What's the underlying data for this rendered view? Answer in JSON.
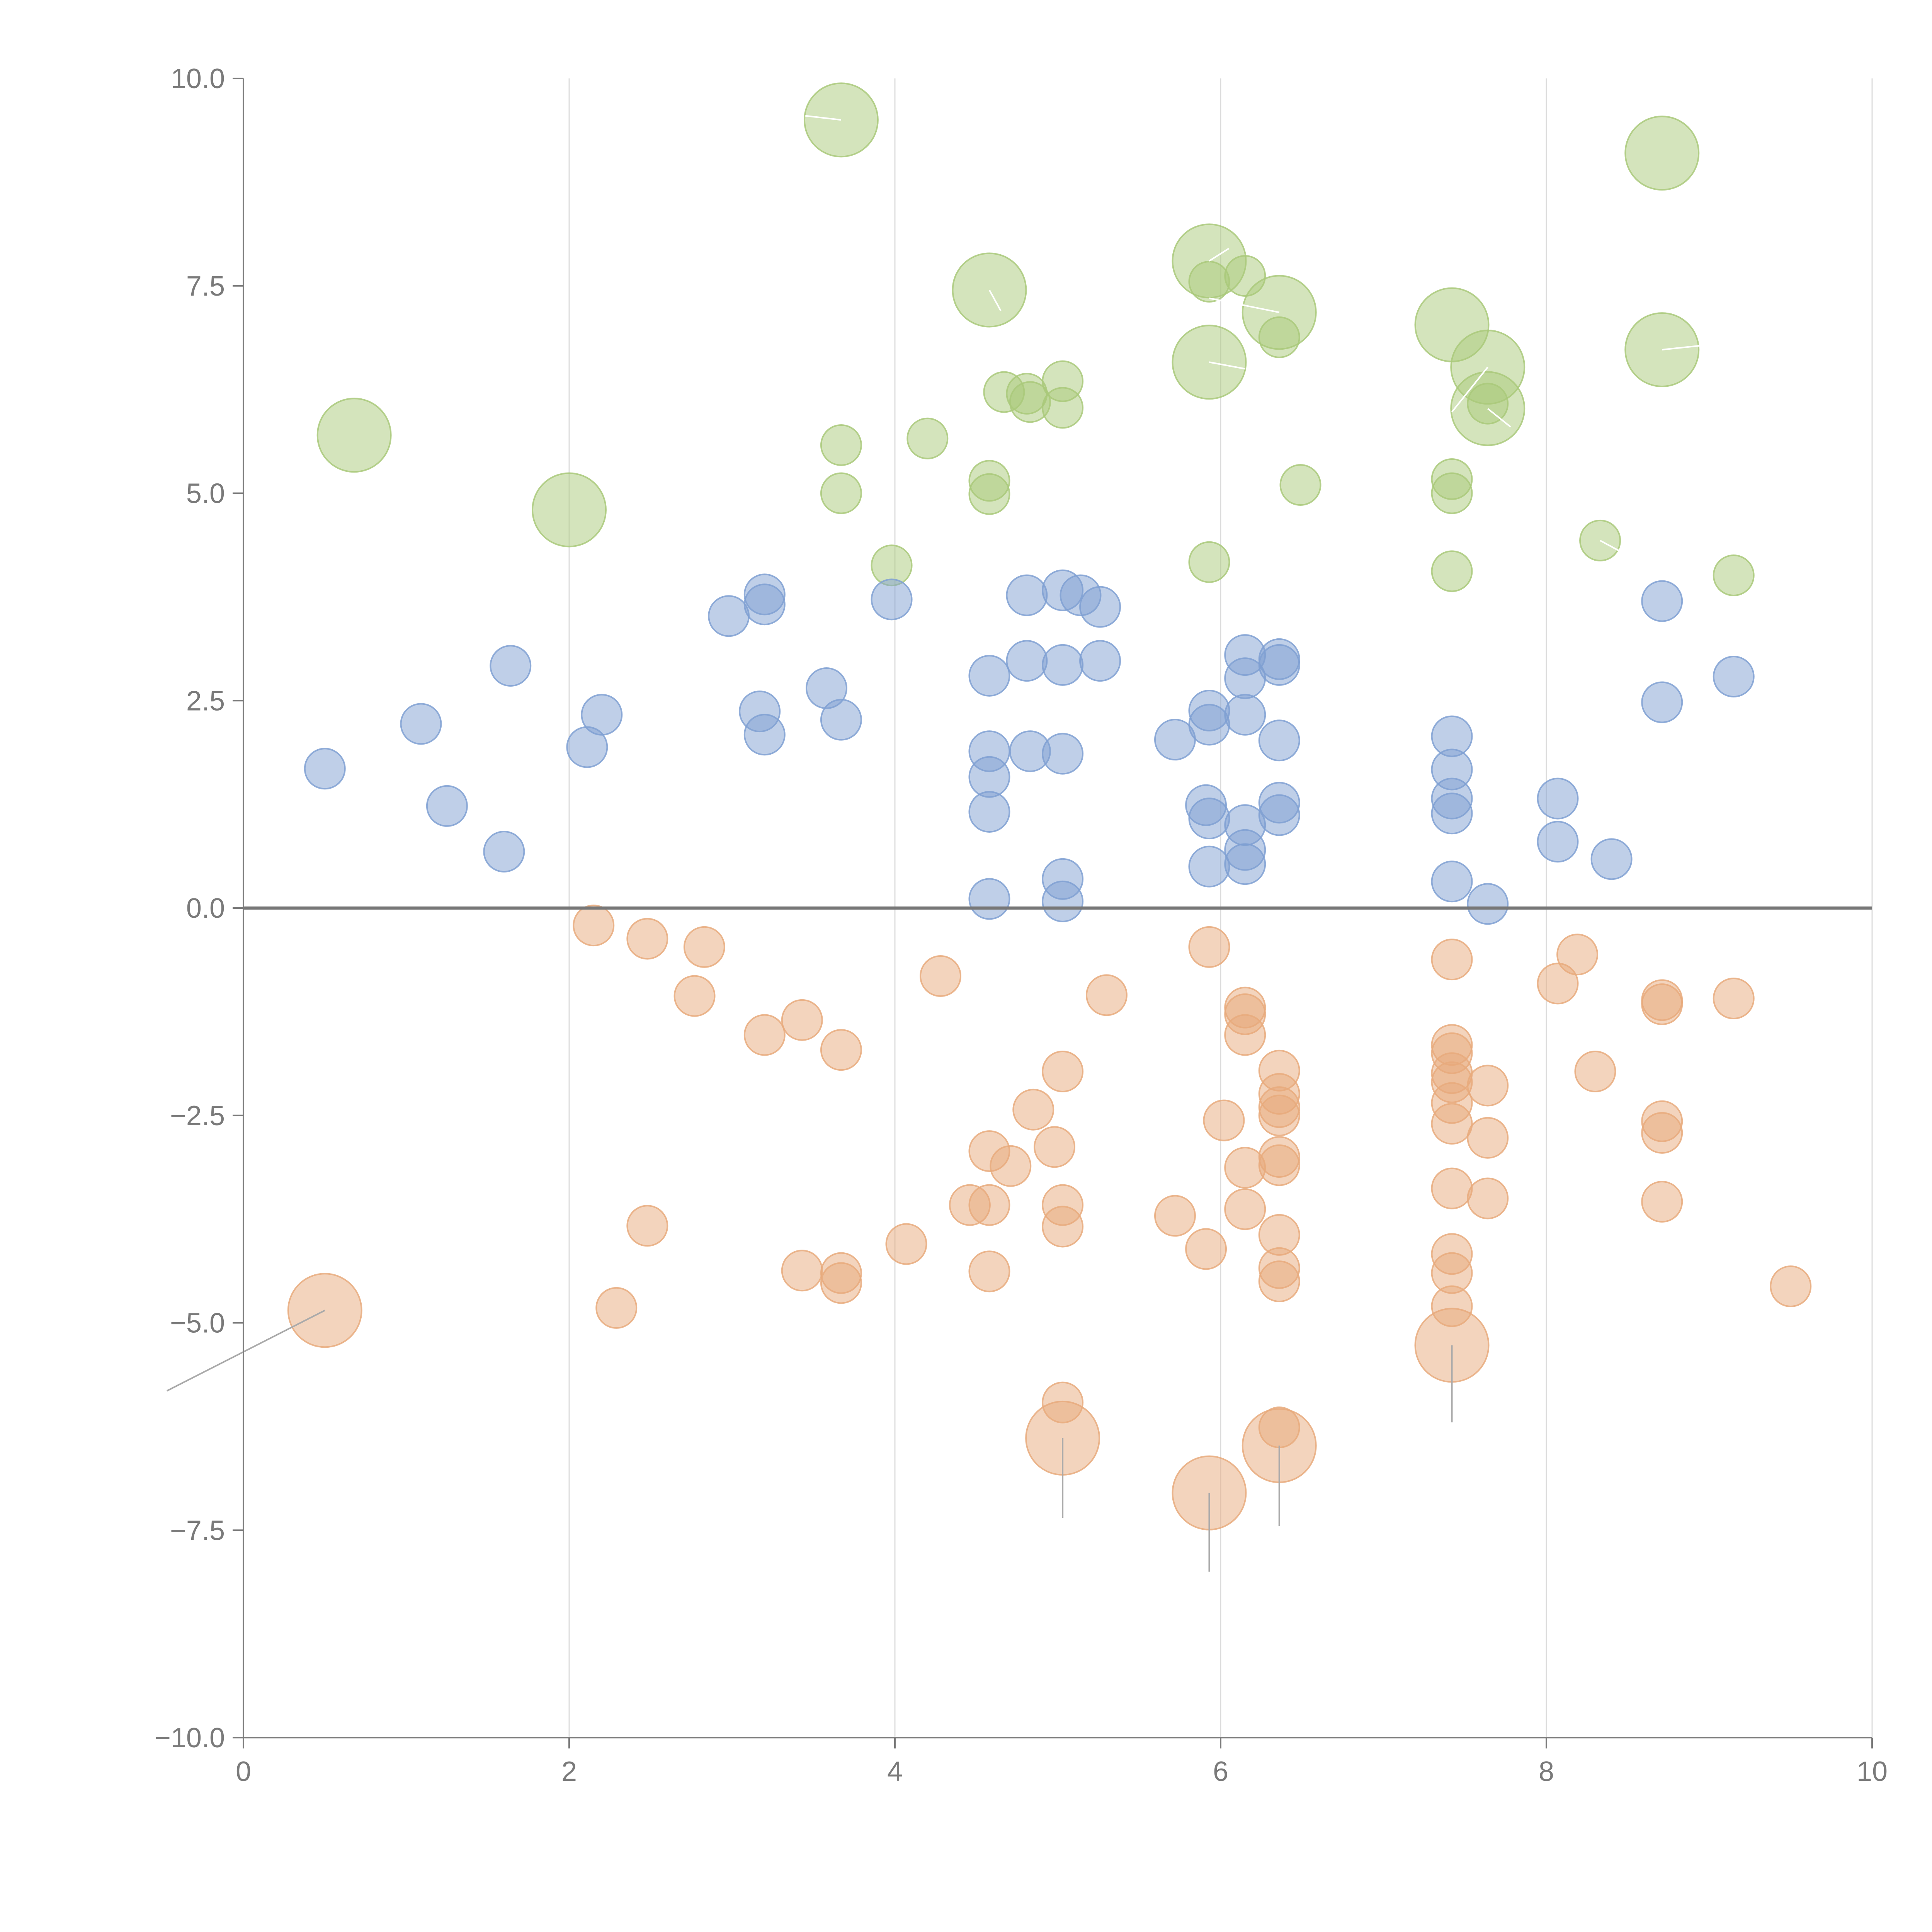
{
  "chart_data": {
    "type": "scatter",
    "title": "",
    "xlabel": "",
    "ylabel": "",
    "xlim": [
      0,
      10
    ],
    "ylim": [
      -10,
      10
    ],
    "x_ticks": [
      0,
      2,
      4,
      6,
      8,
      10
    ],
    "x_tick_labels": [
      "0",
      "2",
      "4",
      "6",
      "8",
      "10"
    ],
    "y_ticks": [
      10,
      7.5,
      5,
      2.5,
      0,
      -2.5,
      -5,
      -7.5,
      -10
    ],
    "y_tick_labels": [
      "10.0",
      "7.5",
      "5.0",
      "2.5",
      "0.0",
      "−2.5",
      "−5.0",
      "−7.5",
      "−10.0"
    ],
    "grid": {
      "vertical": true,
      "horizontal": false
    },
    "zero_line": true,
    "legend": "none",
    "series": [
      {
        "color": "#a9c97a",
        "points": [
          [
            3.67,
            9.5,
            1
          ],
          [
            8.71,
            9.1,
            1
          ],
          [
            5.93,
            7.8,
            1
          ],
          [
            4.58,
            7.45,
            1
          ],
          [
            6.36,
            7.18,
            1
          ],
          [
            7.42,
            7.03,
            1
          ],
          [
            8.71,
            6.73,
            1
          ],
          [
            5.93,
            6.58,
            1
          ],
          [
            7.64,
            6.52,
            1
          ],
          [
            7.64,
            6.02,
            1
          ],
          [
            0.68,
            5.7,
            1
          ],
          [
            2.0,
            4.8,
            1
          ],
          [
            5.93,
            7.55,
            0
          ],
          [
            6.15,
            7.62,
            0
          ],
          [
            6.36,
            6.88,
            0
          ],
          [
            4.67,
            6.22,
            0
          ],
          [
            4.81,
            6.2,
            0
          ],
          [
            4.83,
            6.1,
            0
          ],
          [
            5.03,
            6.35,
            0
          ],
          [
            5.03,
            6.03,
            0
          ],
          [
            3.67,
            5.58,
            0
          ],
          [
            4.2,
            5.66,
            0
          ],
          [
            4.58,
            5.15,
            0
          ],
          [
            4.58,
            4.99,
            0
          ],
          [
            3.67,
            5.0,
            0
          ],
          [
            6.49,
            5.1,
            0
          ],
          [
            7.42,
            5.17,
            0
          ],
          [
            7.42,
            5.0,
            0
          ],
          [
            7.42,
            4.06,
            0
          ],
          [
            7.64,
            6.08,
            0
          ],
          [
            3.98,
            4.13,
            0
          ],
          [
            5.93,
            4.17,
            0
          ],
          [
            8.33,
            4.43,
            0
          ],
          [
            9.15,
            4.01,
            0
          ]
        ]
      },
      {
        "color": "#7fa0d2",
        "points": [
          [
            0.5,
            1.68,
            0
          ],
          [
            1.09,
            2.22,
            0
          ],
          [
            1.25,
            1.23,
            0
          ],
          [
            1.6,
            0.68,
            0
          ],
          [
            1.64,
            2.92,
            0
          ],
          [
            2.11,
            1.94,
            0
          ],
          [
            2.2,
            2.33,
            0
          ],
          [
            2.98,
            3.52,
            0
          ],
          [
            3.17,
            2.37,
            0
          ],
          [
            3.2,
            2.09,
            0
          ],
          [
            3.2,
            3.78,
            0
          ],
          [
            3.2,
            3.66,
            0
          ],
          [
            3.58,
            2.65,
            0
          ],
          [
            3.67,
            2.27,
            0
          ],
          [
            3.98,
            3.72,
            0
          ],
          [
            4.58,
            2.8,
            0
          ],
          [
            4.58,
            1.89,
            0
          ],
          [
            4.58,
            1.58,
            0
          ],
          [
            4.58,
            1.16,
            0
          ],
          [
            4.58,
            0.11,
            0
          ],
          [
            4.81,
            3.77,
            0
          ],
          [
            4.81,
            2.98,
            0
          ],
          [
            4.83,
            1.89,
            0
          ],
          [
            5.03,
            3.83,
            0
          ],
          [
            5.03,
            2.93,
            0
          ],
          [
            5.03,
            1.86,
            0
          ],
          [
            5.03,
            0.35,
            0
          ],
          [
            5.03,
            0.08,
            0
          ],
          [
            5.14,
            3.77,
            0
          ],
          [
            5.26,
            3.63,
            0
          ],
          [
            5.26,
            2.98,
            0
          ],
          [
            5.72,
            2.03,
            0
          ],
          [
            5.91,
            1.24,
            0
          ],
          [
            5.93,
            2.38,
            0
          ],
          [
            5.93,
            2.21,
            0
          ],
          [
            5.93,
            1.08,
            0
          ],
          [
            5.93,
            0.5,
            0
          ],
          [
            6.15,
            3.05,
            0
          ],
          [
            6.15,
            2.77,
            0
          ],
          [
            6.15,
            2.33,
            0
          ],
          [
            6.15,
            1.0,
            0
          ],
          [
            6.15,
            0.7,
            0
          ],
          [
            6.15,
            0.53,
            0
          ],
          [
            6.36,
            3.0,
            0
          ],
          [
            6.36,
            2.93,
            0
          ],
          [
            6.36,
            2.02,
            0
          ],
          [
            6.36,
            1.27,
            0
          ],
          [
            6.36,
            1.12,
            0
          ],
          [
            7.42,
            2.07,
            0
          ],
          [
            7.42,
            1.67,
            0
          ],
          [
            7.42,
            1.32,
            0
          ],
          [
            7.42,
            1.14,
            0
          ],
          [
            7.42,
            0.32,
            0
          ],
          [
            7.64,
            0.05,
            0
          ],
          [
            8.07,
            1.32,
            0
          ],
          [
            8.07,
            0.8,
            0
          ],
          [
            8.4,
            0.59,
            0
          ],
          [
            8.71,
            3.7,
            0
          ],
          [
            8.71,
            2.48,
            0
          ],
          [
            9.15,
            2.79,
            0
          ]
        ]
      },
      {
        "color": "#e8aa7c",
        "points": [
          [
            0.5,
            -4.85,
            1
          ],
          [
            5.03,
            -6.39,
            1
          ],
          [
            5.93,
            -7.05,
            1
          ],
          [
            6.36,
            -6.48,
            1
          ],
          [
            7.42,
            -5.27,
            1
          ],
          [
            2.15,
            -0.21,
            0
          ],
          [
            2.48,
            -0.37,
            0
          ],
          [
            2.83,
            -0.47,
            0
          ],
          [
            2.77,
            -1.06,
            0
          ],
          [
            3.2,
            -1.53,
            0
          ],
          [
            3.43,
            -1.35,
            0
          ],
          [
            3.67,
            -1.71,
            0
          ],
          [
            4.28,
            -0.82,
            0
          ],
          [
            5.3,
            -1.05,
            0
          ],
          [
            5.93,
            -0.47,
            0
          ],
          [
            6.15,
            -1.2,
            0
          ],
          [
            6.15,
            -1.28,
            0
          ],
          [
            6.15,
            -1.53,
            0
          ],
          [
            6.36,
            -1.96,
            0
          ],
          [
            6.36,
            -2.24,
            0
          ],
          [
            6.36,
            -2.4,
            0
          ],
          [
            6.36,
            -2.5,
            0
          ],
          [
            6.36,
            -3.0,
            0
          ],
          [
            6.36,
            -3.1,
            0
          ],
          [
            6.36,
            -3.94,
            0
          ],
          [
            6.36,
            -4.34,
            0
          ],
          [
            6.36,
            -4.5,
            0
          ],
          [
            6.36,
            -6.26,
            0
          ],
          [
            6.02,
            -2.56,
            0
          ],
          [
            6.15,
            -3.13,
            0
          ],
          [
            6.15,
            -3.63,
            0
          ],
          [
            5.72,
            -3.71,
            0
          ],
          [
            5.91,
            -4.11,
            0
          ],
          [
            5.03,
            -1.97,
            0
          ],
          [
            4.85,
            -2.43,
            0
          ],
          [
            4.98,
            -2.88,
            0
          ],
          [
            4.58,
            -2.93,
            0
          ],
          [
            4.71,
            -3.11,
            0
          ],
          [
            4.46,
            -3.58,
            0
          ],
          [
            4.58,
            -3.58,
            0
          ],
          [
            5.03,
            -3.58,
            0
          ],
          [
            5.03,
            -3.84,
            0
          ],
          [
            4.07,
            -4.05,
            0
          ],
          [
            4.58,
            -4.38,
            0
          ],
          [
            3.43,
            -4.37,
            0
          ],
          [
            3.67,
            -4.4,
            0
          ],
          [
            3.67,
            -4.52,
            0
          ],
          [
            2.48,
            -3.83,
            0
          ],
          [
            2.29,
            -4.82,
            0
          ],
          [
            5.03,
            -5.96,
            0
          ],
          [
            7.42,
            -0.62,
            0
          ],
          [
            7.42,
            -1.65,
            0
          ],
          [
            7.42,
            -1.75,
            0
          ],
          [
            7.42,
            -1.99,
            0
          ],
          [
            7.42,
            -2.1,
            0
          ],
          [
            7.42,
            -2.35,
            0
          ],
          [
            7.42,
            -2.6,
            0
          ],
          [
            7.42,
            -3.38,
            0
          ],
          [
            7.42,
            -4.17,
            0
          ],
          [
            7.42,
            -4.4,
            0
          ],
          [
            7.42,
            -4.8,
            0
          ],
          [
            7.64,
            -2.14,
            0
          ],
          [
            7.64,
            -2.77,
            0
          ],
          [
            7.64,
            -3.5,
            0
          ],
          [
            8.07,
            -0.91,
            0
          ],
          [
            8.19,
            -0.56,
            0
          ],
          [
            8.3,
            -1.97,
            0
          ],
          [
            8.71,
            -1.11,
            0
          ],
          [
            8.71,
            -1.16,
            0
          ],
          [
            8.71,
            -2.57,
            0
          ],
          [
            8.71,
            -2.71,
            0
          ],
          [
            8.71,
            -3.54,
            0
          ],
          [
            9.15,
            -1.09,
            0
          ],
          [
            9.5,
            -4.56,
            0
          ]
        ]
      }
    ],
    "leaders": [
      {
        "color": "#ffffff",
        "x1": 3.67,
        "y1": 9.5,
        "x2": 3.45,
        "y2": 9.55
      },
      {
        "color": "#ffffff",
        "x1": 8.71,
        "y1": 6.73,
        "x2": 8.95,
        "y2": 6.78
      },
      {
        "color": "#ffffff",
        "x1": 5.93,
        "y1": 7.8,
        "x2": 6.05,
        "y2": 7.95
      },
      {
        "color": "#ffffff",
        "x1": 4.58,
        "y1": 7.45,
        "x2": 4.65,
        "y2": 7.2
      },
      {
        "color": "#ffffff",
        "x1": 6.36,
        "y1": 7.18,
        "x2": 5.93,
        "y2": 7.35
      },
      {
        "color": "#ffffff",
        "x1": 5.93,
        "y1": 6.58,
        "x2": 6.15,
        "y2": 6.5
      },
      {
        "color": "#ffffff",
        "x1": 7.64,
        "y1": 6.52,
        "x2": 7.42,
        "y2": 5.98
      },
      {
        "color": "#ffffff",
        "x1": 7.64,
        "y1": 6.02,
        "x2": 7.78,
        "y2": 5.8
      },
      {
        "color": "#ffffff",
        "x1": 8.33,
        "y1": 4.43,
        "x2": 8.5,
        "y2": 4.25
      },
      {
        "color": "#aaaaaa",
        "x1": 0.5,
        "y1": -4.85,
        "x2": -0.47,
        "y2": -5.82
      },
      {
        "color": "#aaaaaa",
        "x1": 5.03,
        "y1": -6.39,
        "x2": 5.03,
        "y2": -7.35
      },
      {
        "color": "#aaaaaa",
        "x1": 5.93,
        "y1": -7.05,
        "x2": 5.93,
        "y2": -8.0
      },
      {
        "color": "#aaaaaa",
        "x1": 6.36,
        "y1": -6.48,
        "x2": 6.36,
        "y2": -7.45
      },
      {
        "color": "#aaaaaa",
        "x1": 7.42,
        "y1": -5.27,
        "x2": 7.42,
        "y2": -6.2
      }
    ]
  }
}
